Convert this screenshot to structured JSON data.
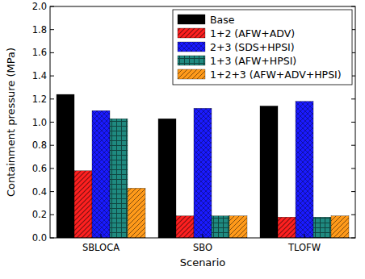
{
  "chart_data": {
    "type": "bar",
    "x_label": "Scenario",
    "y_label": "Containment pressure (MPa)",
    "categories": [
      "SBLOCA",
      "SBO",
      "TLOFW"
    ],
    "series": [
      {
        "name": "Base",
        "color": "#000000",
        "values": [
          1.24,
          1.03,
          1.14
        ]
      },
      {
        "name": "1+2 (AFW+ADV)",
        "color": "#ff2020",
        "values": [
          0.58,
          0.19,
          0.18
        ]
      },
      {
        "name": "2+3 (SDS+HPSI)",
        "color": "#1a1aff",
        "values": [
          1.1,
          1.12,
          1.18
        ]
      },
      {
        "name": "1+3 (AFW+HPSI)",
        "color": "#1f8a80",
        "values": [
          1.03,
          0.19,
          0.18
        ]
      },
      {
        "name": "1+2+3 (AFW+ADV+HPSI)",
        "color": "#ff9a1a",
        "values": [
          0.43,
          0.19,
          0.19
        ]
      }
    ],
    "ylim": [
      0,
      2
    ],
    "yticks": [
      {
        "value": 0,
        "label": "0.0"
      },
      0.2,
      0.4,
      0.6,
      0.8,
      {
        "value": 1,
        "label": "1.0"
      },
      1.2,
      1.4,
      1.6,
      1.8,
      {
        "value": 2,
        "label": "2.0"
      }
    ],
    "legend": "upper right",
    "grid": false
  }
}
